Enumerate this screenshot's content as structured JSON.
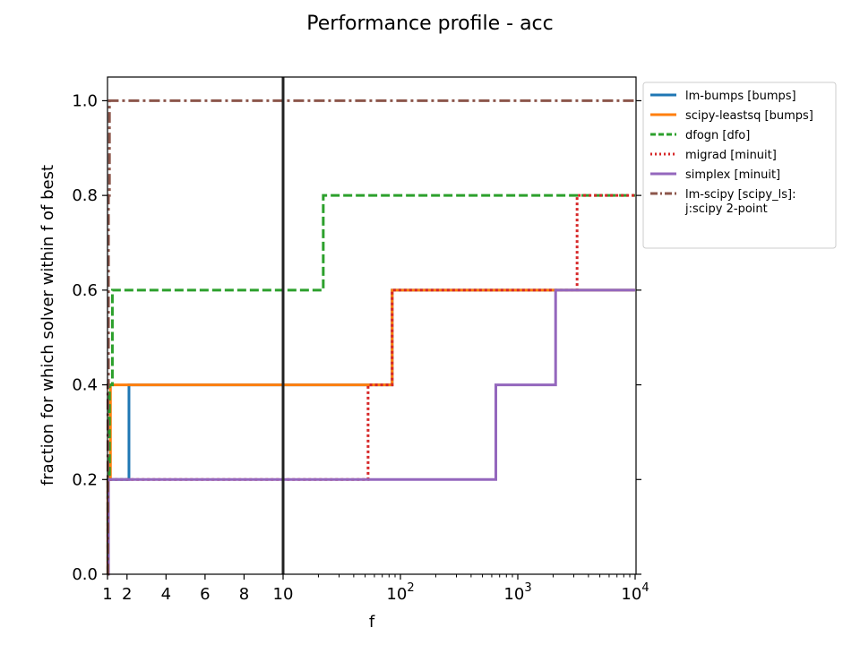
{
  "chart_data": {
    "type": "line",
    "title": "Performance profile - acc",
    "xlabel": "f",
    "ylabel": "fraction for which solver within f of best",
    "xscale": "linear below 10, log above 10",
    "xlim": [
      1,
      10000
    ],
    "ylim": [
      0,
      1.05
    ],
    "vline_x": 10,
    "x_ticks": [
      {
        "value": 1,
        "label": "1"
      },
      {
        "value": 2,
        "label": "2"
      },
      {
        "value": 4,
        "label": "4"
      },
      {
        "value": 6,
        "label": "6"
      },
      {
        "value": 8,
        "label": "8"
      },
      {
        "value": 10,
        "label": "10"
      },
      {
        "value": 100,
        "label": "10",
        "exp": "2"
      },
      {
        "value": 1000,
        "label": "10",
        "exp": "3"
      },
      {
        "value": 10000,
        "label": "10",
        "exp": "4"
      }
    ],
    "y_ticks": [
      {
        "value": 0.0,
        "label": "0.0"
      },
      {
        "value": 0.2,
        "label": "0.2"
      },
      {
        "value": 0.4,
        "label": "0.4"
      },
      {
        "value": 0.6,
        "label": "0.6"
      },
      {
        "value": 0.8,
        "label": "0.8"
      },
      {
        "value": 1.0,
        "label": "1.0"
      }
    ],
    "legend_position": "outside-right",
    "series": [
      {
        "name": "lm-bumps [bumps]",
        "color": "#1f77b4",
        "dash": "solid",
        "steps": [
          [
            1,
            0.0
          ],
          [
            1.02,
            0.2
          ],
          [
            2.1,
            0.4
          ],
          [
            85,
            0.6
          ]
        ]
      },
      {
        "name": "scipy-leastsq [bumps]",
        "color": "#ff7f0e",
        "dash": "solid",
        "steps": [
          [
            1,
            0.0
          ],
          [
            1.02,
            0.2
          ],
          [
            1.15,
            0.4
          ],
          [
            85,
            0.6
          ]
        ]
      },
      {
        "name": "dfogn [dfo]",
        "color": "#2ca02c",
        "dash": "dashed",
        "steps": [
          [
            1,
            0.0
          ],
          [
            1.02,
            0.2
          ],
          [
            1.1,
            0.4
          ],
          [
            1.25,
            0.6
          ],
          [
            22,
            0.8
          ]
        ]
      },
      {
        "name": "migrad [minuit]",
        "color": "#d62728",
        "dash": "dotted",
        "steps": [
          [
            1,
            0.0
          ],
          [
            1.02,
            0.2
          ],
          [
            53,
            0.4
          ],
          [
            85,
            0.6
          ],
          [
            3200,
            0.8
          ]
        ]
      },
      {
        "name": "simplex [minuit]",
        "color": "#9467bd",
        "dash": "solid",
        "steps": [
          [
            1,
            0.0
          ],
          [
            1.05,
            0.2
          ],
          [
            650,
            0.4
          ],
          [
            2100,
            0.6
          ]
        ]
      },
      {
        "name": "lm-scipy [scipy_ls]:\nj:scipy 2-point",
        "color": "#8c564b",
        "dash": "dashdot",
        "steps": [
          [
            1,
            0.0
          ],
          [
            1.02,
            0.4
          ],
          [
            1.05,
            0.8
          ],
          [
            1.1,
            1.0
          ]
        ]
      }
    ]
  }
}
